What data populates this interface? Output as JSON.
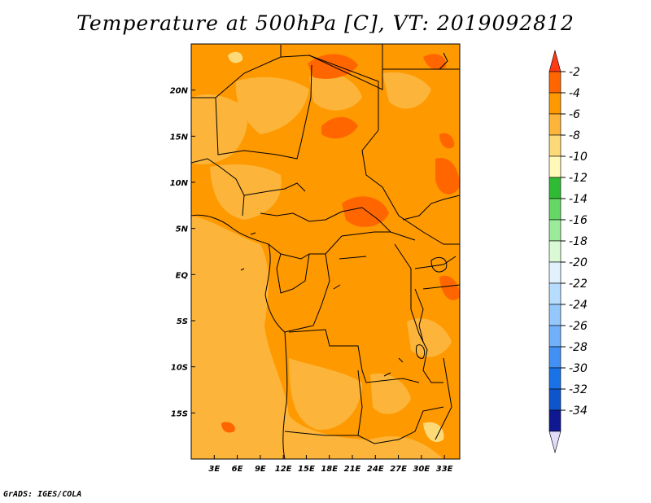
{
  "title": "Temperature at 500hPa [C], VT: 2019092812",
  "credit": "GrADS: IGES/COLA",
  "map": {
    "lon_range": [
      0,
      35
    ],
    "lat_range": [
      -20,
      25
    ],
    "x_ticks": [
      "3E",
      "6E",
      "9E",
      "12E",
      "15E",
      "18E",
      "21E",
      "24E",
      "27E",
      "30E",
      "33E"
    ],
    "y_ticks": [
      "20N",
      "15N",
      "10N",
      "5N",
      "EQ",
      "5S",
      "10S",
      "15S"
    ],
    "dominant_range_c": "-6 to -4"
  },
  "colorbar": {
    "labels": [
      "-2",
      "-4",
      "-6",
      "-8",
      "-10",
      "-12",
      "-14",
      "-16",
      "-18",
      "-20",
      "-22",
      "-24",
      "-26",
      "-28",
      "-30",
      "-32",
      "-34"
    ],
    "colors": [
      "#ff6600",
      "#fe9900",
      "#fcb53a",
      "#fcda78",
      "#fff8b6",
      "#30bb35",
      "#65d765",
      "#9ceb9b",
      "#d9fad4",
      "#e1f2fe",
      "#b6ddfe",
      "#94c7fc",
      "#70b1f9",
      "#4390f5",
      "#1a73e6",
      "#0e55cb",
      "#101891"
    ],
    "over_color": "#ff3a14",
    "under_color": "#e0dcfa"
  }
}
